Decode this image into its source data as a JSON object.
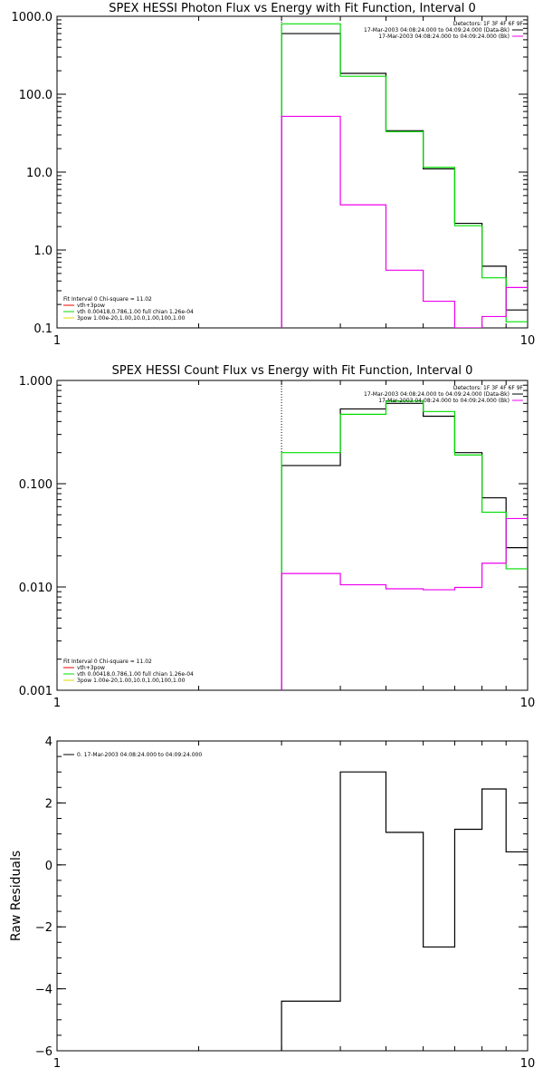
{
  "chart_data": [
    {
      "type": "line",
      "step": true,
      "title": "SPEX HESSI Photon Flux vs Energy with Fit Function, Interval 0",
      "xlabel": "",
      "ylabel": "",
      "xscale": "log",
      "yscale": "log",
      "xlim": [
        1,
        10
      ],
      "ylim": [
        0.1,
        1000
      ],
      "xticks": [
        {
          "v": 1,
          "label": "1"
        },
        {
          "v": 10,
          "label": "10"
        }
      ],
      "yticks": [
        {
          "v": 0.1,
          "label": "0.1"
        },
        {
          "v": 1,
          "label": "1.0"
        },
        {
          "v": 10,
          "label": "10.0"
        },
        {
          "v": 100,
          "label": "100.0"
        },
        {
          "v": 1000,
          "label": "1000.0"
        }
      ],
      "marker_x": 3.0,
      "edges": [
        3.0,
        4.0,
        5.0,
        6.0,
        7.0,
        8.0,
        9.0,
        10.0
      ],
      "series": [
        {
          "color": "#000000",
          "values": [
            600,
            185,
            34,
            11,
            2.2,
            0.62,
            0.17
          ]
        },
        {
          "color": "#00dd00",
          "values": [
            800,
            170,
            33,
            11.5,
            2.05,
            0.44,
            0.12
          ]
        },
        {
          "color": "#ee00ee",
          "values": [
            52,
            3.8,
            0.55,
            0.22,
            0.1,
            0.14,
            0.33
          ]
        }
      ],
      "legend_top": {
        "placement": "top-right",
        "header": "Detectors: 1F 3F 4F 6F 9F",
        "lines": [
          {
            "text": "17-Mar-2003 04:08:24.000 to 04:09:24.000 (Data-Bk)",
            "color": "#000000"
          },
          {
            "text": "17-Mar-2003 04:08:24.000 to 04:09:24.000 (Bk)",
            "color": "#ee00ee"
          }
        ]
      },
      "legend_bottom": {
        "placement": "bottom-left",
        "header": "Fit Interval 0   Chi-square = 11.02",
        "lines": [
          {
            "text": "vth+3pow",
            "color": "#ee0000"
          },
          {
            "text": "vth 0.00418,0.786,1.00   full chian 1.26e-04",
            "color": "#00dd00"
          },
          {
            "text": "3pow 1.00e-20,1.00,10.0,1.00,100,1.00",
            "color": "#dddd00"
          }
        ]
      }
    },
    {
      "type": "line",
      "step": true,
      "title": "SPEX HESSI Count Flux vs Energy with Fit Function, Interval 0",
      "xlabel": "",
      "ylabel": "",
      "xscale": "log",
      "yscale": "log",
      "xlim": [
        1,
        10
      ],
      "ylim": [
        0.001,
        1
      ],
      "xticks": [
        {
          "v": 1,
          "label": "1"
        },
        {
          "v": 10,
          "label": "10"
        }
      ],
      "yticks": [
        {
          "v": 0.001,
          "label": "0.001"
        },
        {
          "v": 0.01,
          "label": "0.010"
        },
        {
          "v": 0.1,
          "label": "0.100"
        },
        {
          "v": 1,
          "label": "1.000"
        }
      ],
      "marker_x": 3.0,
      "edges": [
        3.0,
        4.0,
        5.0,
        6.0,
        7.0,
        8.0,
        9.0,
        10.0
      ],
      "series": [
        {
          "color": "#000000",
          "values": [
            0.15,
            0.53,
            0.6,
            0.45,
            0.2,
            0.073,
            0.024
          ]
        },
        {
          "color": "#00dd00",
          "values": [
            0.2,
            0.47,
            0.63,
            0.5,
            0.19,
            0.053,
            0.015
          ]
        },
        {
          "color": "#ee00ee",
          "values": [
            0.0135,
            0.0105,
            0.0096,
            0.0094,
            0.0099,
            0.017,
            0.046
          ]
        }
      ],
      "legend_top": {
        "placement": "top-right",
        "header": "Detectors: 1F 3F 4F 6F 9F",
        "lines": [
          {
            "text": "17-Mar-2003 04:08:24.000 to 04:09:24.000 (Data-Bk)",
            "color": "#000000"
          },
          {
            "text": "17-Mar-2003 04:08:24.000 to 04:09:24.000 (Bk)",
            "color": "#ee00ee"
          }
        ]
      },
      "legend_bottom": {
        "placement": "bottom-left",
        "header": "Fit Interval 0   Chi-square = 11.02",
        "lines": [
          {
            "text": "vth+3pow",
            "color": "#ee0000"
          },
          {
            "text": "vth 0.00418,0.786,1.00   full chian 1.26e-04",
            "color": "#00dd00"
          },
          {
            "text": "3pow 1.00e-20,1.00,10.0,1.00,100,1.00",
            "color": "#dddd00"
          }
        ]
      }
    },
    {
      "type": "line",
      "step": true,
      "title": "",
      "xlabel": "",
      "ylabel": "Raw Residuals",
      "xscale": "log",
      "yscale": "linear",
      "xlim": [
        1,
        10
      ],
      "ylim": [
        -6,
        4
      ],
      "xticks": [
        {
          "v": 1,
          "label": "1"
        },
        {
          "v": 10,
          "label": "10"
        }
      ],
      "yticks": [
        {
          "v": -6,
          "label": "−6"
        },
        {
          "v": -4,
          "label": "−4"
        },
        {
          "v": -2,
          "label": "−2"
        },
        {
          "v": 0,
          "label": "0"
        },
        {
          "v": 2,
          "label": "2"
        },
        {
          "v": 4,
          "label": "4"
        }
      ],
      "edges": [
        3.0,
        4.0,
        5.0,
        6.0,
        7.0,
        8.0,
        9.0,
        10.0
      ],
      "series": [
        {
          "color": "#000000",
          "values": [
            -4.4,
            3.0,
            1.05,
            -2.65,
            1.15,
            2.45,
            0.42
          ]
        }
      ],
      "legend_top": {
        "placement": "top-left",
        "header": "",
        "lines": [
          {
            "text": "0. 17-Mar-2003 04:08:24.000 to 04:09:24.000",
            "color": "#000000"
          }
        ]
      }
    }
  ]
}
